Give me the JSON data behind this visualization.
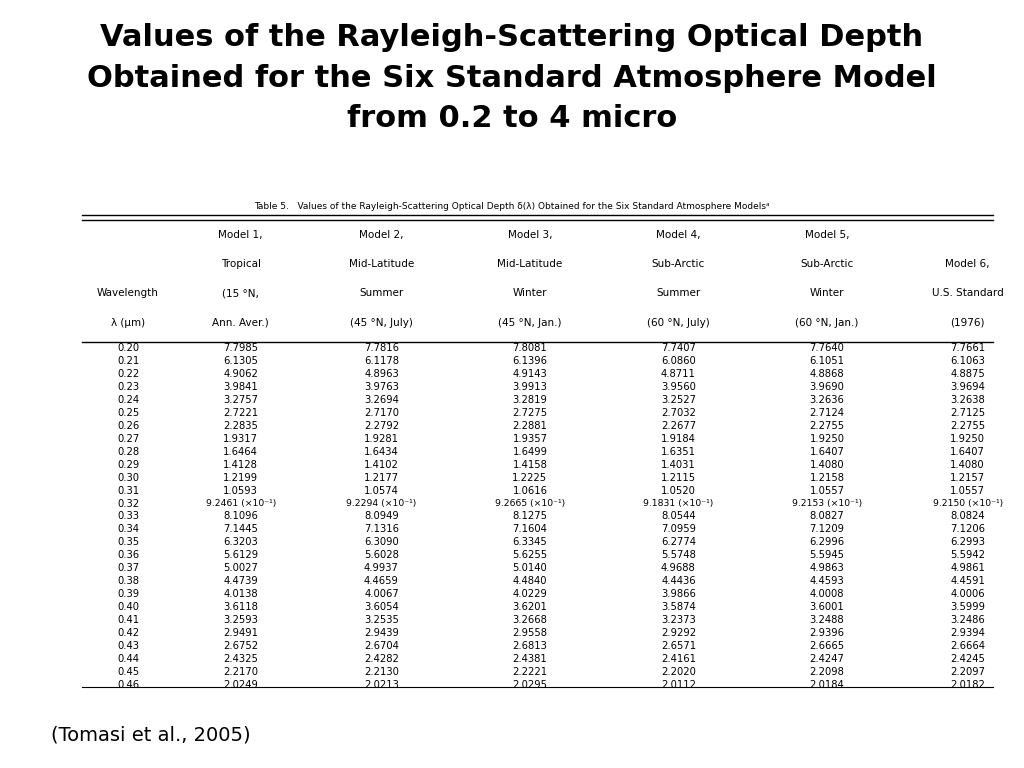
{
  "title": "Values of the Rayleigh-Scattering Optical Depth\nObtained for the Six Standard Atmosphere Model\nfrom 0.2 to 4 micro",
  "table_caption": "Table 5.   Values of the Rayleigh-Scattering Optical Depth δ(λ) Obtained for the Six Standard Atmosphere Modelsᵃ",
  "citation": "(Tomasi et al., 2005)",
  "col_headers": [
    [
      "Wavelength",
      "λ (μm)"
    ],
    [
      "Model 1,",
      "Tropical",
      "(15 °N,",
      "Ann. Aver.)"
    ],
    [
      "Model 2,",
      "Mid-Latitude",
      "Summer",
      "(45 °N, July)"
    ],
    [
      "Model 3,",
      "Mid-Latitude",
      "Winter",
      "(45 °N, Jan.)"
    ],
    [
      "Model 4,",
      "Sub-Arctic",
      "Summer",
      "(60 °N, July)"
    ],
    [
      "Model 5,",
      "Sub-Arctic",
      "Winter",
      "(60 °N, Jan.)"
    ],
    [
      "Model 6,",
      "U.S. Standard",
      "(1976)"
    ]
  ],
  "wavelengths": [
    0.2,
    0.21,
    0.22,
    0.23,
    0.24,
    0.25,
    0.26,
    0.27,
    0.28,
    0.29,
    0.3,
    0.31,
    0.32,
    0.33,
    0.34,
    0.35,
    0.36,
    0.37,
    0.38,
    0.39,
    0.4,
    0.41,
    0.42,
    0.43,
    0.44,
    0.45,
    0.46
  ],
  "data": {
    "m1": [
      7.7985,
      6.1305,
      4.9062,
      3.9841,
      3.2757,
      2.7221,
      2.2835,
      1.9317,
      1.6464,
      1.4128,
      1.2199,
      1.0593,
      "9.2461e-1",
      8.1096,
      7.1445,
      6.3203,
      5.6129,
      5.0027,
      4.4739,
      4.0138,
      3.6118,
      3.2593,
      2.9491,
      2.6752,
      2.4325,
      2.217,
      2.0249
    ],
    "m2": [
      7.7816,
      6.1178,
      4.8963,
      3.9763,
      3.2694,
      2.717,
      2.2792,
      1.9281,
      1.6434,
      1.4102,
      1.2177,
      1.0574,
      "9.2294e-1",
      8.0949,
      7.1316,
      6.309,
      5.6028,
      4.9937,
      4.4659,
      4.0067,
      3.6054,
      3.2535,
      2.9439,
      2.6704,
      2.4282,
      2.213,
      2.0213
    ],
    "m3": [
      7.8081,
      6.1396,
      4.9143,
      3.9913,
      3.2819,
      2.7275,
      2.2881,
      1.9357,
      1.6499,
      1.4158,
      1.2225,
      1.0616,
      "9.2665e-1",
      8.1275,
      7.1604,
      6.3345,
      5.6255,
      5.014,
      4.484,
      4.0229,
      3.6201,
      3.2668,
      2.9558,
      2.6813,
      2.4381,
      2.2221,
      2.0295
    ],
    "m4": [
      7.7407,
      6.086,
      4.8711,
      3.956,
      3.2527,
      2.7032,
      2.2677,
      1.9184,
      1.6351,
      1.4031,
      1.2115,
      1.052,
      "9.1831e-1",
      8.0544,
      7.0959,
      6.2774,
      5.5748,
      4.9688,
      4.4436,
      3.9866,
      3.5874,
      3.2373,
      2.9292,
      2.6571,
      2.4161,
      2.202,
      2.0112
    ],
    "m5": [
      7.764,
      6.1051,
      4.8868,
      3.969,
      3.2636,
      2.7124,
      2.2755,
      1.925,
      1.6407,
      1.408,
      1.2158,
      1.0557,
      "9.2153e-1",
      8.0827,
      7.1209,
      6.2996,
      5.5945,
      4.9863,
      4.4593,
      4.0008,
      3.6001,
      3.2488,
      2.9396,
      2.6665,
      2.4247,
      2.2098,
      2.0184
    ],
    "m6": [
      7.7661,
      6.1063,
      4.8875,
      3.9694,
      3.2638,
      2.7125,
      2.2755,
      1.925,
      1.6407,
      1.408,
      1.2157,
      1.0557,
      "9.2150e-1",
      8.0824,
      7.1206,
      6.2993,
      5.5942,
      4.9861,
      4.4591,
      4.0006,
      3.5999,
      3.2486,
      2.9394,
      2.6664,
      2.4245,
      2.2097,
      2.0182
    ]
  },
  "special_row_idx": 12,
  "special_row_texts": {
    "m1": "9.2461×10⁻¹",
    "m2": "9.2294×10⁻¹",
    "m3": "9.2665×10⁻¹",
    "m4": "9.1831×10⁻¹",
    "m5": "9.2153×10⁻¹",
    "m6": "9.2150×10⁻¹"
  }
}
